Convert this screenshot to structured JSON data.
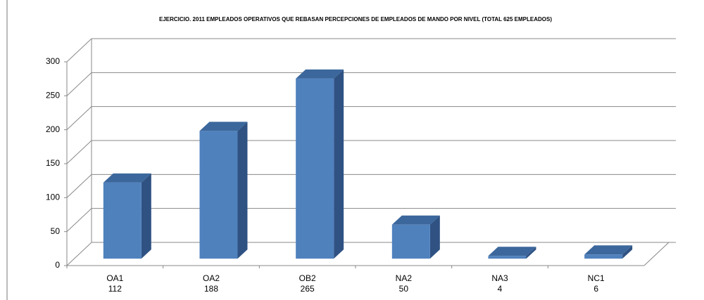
{
  "chart_data": {
    "type": "bar3d",
    "title": "EJERCICIO.  2011 EMPLEADOS OPERATIVOS QUE REBASAN PERCEPCIONES DE EMPLEADOS DE MANDO POR NIVEL (TOTAL 625 EMPLEADOS)",
    "categories": [
      "OA1",
      "OA2",
      "OB2",
      "NA2",
      "NA3",
      "NC1"
    ],
    "values": [
      112,
      188,
      265,
      50,
      4,
      6
    ],
    "color": "#4f81bd",
    "ylim": [
      0,
      300
    ],
    "yticks": [
      0,
      50,
      100,
      150,
      200,
      250,
      300
    ],
    "grid": true
  }
}
